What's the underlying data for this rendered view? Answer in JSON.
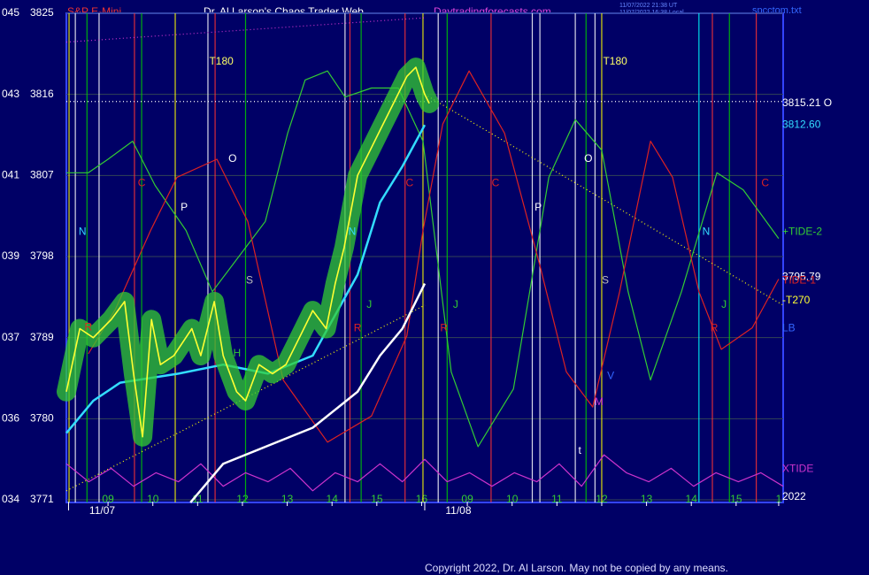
{
  "chart_data": {
    "type": "line",
    "symbol": "S&P E-Mini",
    "title": "Dr. Al Larson's Chaos Trader Web",
    "site": "Daytradingforecasts.com",
    "timestamps": [
      "11/07/2022 21:38 UT",
      "11/07/2022 16:38 Local"
    ],
    "file": "spcctom.txt",
    "copyright": "Copyright 2022, Dr. Al Larson. May not be copied by any means.",
    "background": "#000066",
    "grid": true,
    "xlim": [
      0,
      16
    ],
    "ylim": [
      3771,
      3825
    ],
    "yticks": [
      3771,
      3780,
      3789,
      3798,
      3807,
      3816,
      3825
    ],
    "ytick_prefixes": [
      "034",
      "036",
      "037",
      "039",
      "041",
      "043",
      "045"
    ],
    "xticks": [
      {
        "value": 0.93,
        "label": "09"
      },
      {
        "value": 1.93,
        "label": "10"
      },
      {
        "value": 2.93,
        "label": "11"
      },
      {
        "value": 3.93,
        "label": "12"
      },
      {
        "value": 4.93,
        "label": "13"
      },
      {
        "value": 5.93,
        "label": "14"
      },
      {
        "value": 6.93,
        "label": "15"
      },
      {
        "value": 7.93,
        "label": "16"
      },
      {
        "value": 8.95,
        "label": "09"
      },
      {
        "value": 9.95,
        "label": "10"
      },
      {
        "value": 10.95,
        "label": "11"
      },
      {
        "value": 11.95,
        "label": "12"
      },
      {
        "value": 12.95,
        "label": "13"
      },
      {
        "value": 13.95,
        "label": "14"
      },
      {
        "value": 14.95,
        "label": "15"
      },
      {
        "value": 15.9,
        "label": "1"
      }
    ],
    "dates": [
      {
        "value": 0.8,
        "label": "11/07"
      },
      {
        "value": 8.75,
        "label": "11/08"
      }
    ],
    "vlines": [
      {
        "x": 0.06,
        "color": "#ffff00"
      },
      {
        "x": 0.2,
        "color": "#ffffff"
      },
      {
        "x": 0.46,
        "color": "#00cc00"
      },
      {
        "x": 0.73,
        "color": "#ffffff"
      },
      {
        "x": 1.52,
        "color": "#ff3333"
      },
      {
        "x": 1.68,
        "color": "#00cc00"
      },
      {
        "x": 2.43,
        "color": "#ffff00"
      },
      {
        "x": 3.16,
        "color": "#ffffff"
      },
      {
        "x": 3.32,
        "color": "#ff3333"
      },
      {
        "x": 4.0,
        "color": "#00cc00"
      },
      {
        "x": 6.22,
        "color": "#ffffff"
      },
      {
        "x": 6.33,
        "color": "#ff3333"
      },
      {
        "x": 6.58,
        "color": "#00cc00"
      },
      {
        "x": 7.56,
        "color": "#ff3333"
      },
      {
        "x": 7.96,
        "color": "#ffff00"
      },
      {
        "x": 8.3,
        "color": "#ffffff"
      },
      {
        "x": 8.5,
        "color": "#00cc00"
      },
      {
        "x": 9.48,
        "color": "#ff3333"
      },
      {
        "x": 10.4,
        "color": "#ffffff"
      },
      {
        "x": 10.57,
        "color": "#ffffff"
      },
      {
        "x": 11.36,
        "color": "#ffffff"
      },
      {
        "x": 11.6,
        "color": "#00cc00"
      },
      {
        "x": 11.8,
        "color": "#ffffff"
      },
      {
        "x": 11.95,
        "color": "#ffff00"
      },
      {
        "x": 14.12,
        "color": "#00ffff"
      },
      {
        "x": 14.42,
        "color": "#ff3333"
      },
      {
        "x": 14.8,
        "color": "#00cc00"
      },
      {
        "x": 15.4,
        "color": "#ff3333"
      }
    ],
    "trendlines": [
      {
        "x": [
          0,
          16
        ],
        "values": [
          3815.21,
          3815.21
        ],
        "color": "#ffffff"
      },
      {
        "x": [
          8,
          16
        ],
        "values": [
          3816,
          3792.6
        ],
        "color": "#ffff00"
      },
      {
        "x": [
          0,
          8
        ],
        "values": [
          3772,
          3792.6
        ],
        "color": "#ffff00"
      },
      {
        "x": [
          0,
          8
        ],
        "values": [
          3821.8,
          3824.5
        ],
        "color": "#cc33cc"
      }
    ],
    "series": [
      {
        "color": "#33cc33",
        "width": 1.2,
        "x": [
          0,
          0.49,
          0.93,
          1.48,
          1.98,
          2.67,
          3.26,
          3.85,
          4.44,
          4.94,
          5.33,
          5.83,
          6.22,
          6.81,
          7.41,
          7.96,
          8.59,
          9.19,
          9.98,
          10.77,
          11.36,
          11.95,
          12.54,
          13.04,
          13.73,
          14.52,
          15.11,
          15.9
        ],
        "values": [
          3807.3,
          3807.3,
          3808.8,
          3810.8,
          3805.9,
          3800.9,
          3794.1,
          3798.0,
          3801.9,
          3811.7,
          3817.6,
          3818.6,
          3815.7,
          3816.7,
          3816.7,
          3810.8,
          3785.2,
          3776.9,
          3783.3,
          3806.8,
          3813.2,
          3809.8,
          3794.1,
          3784.3,
          3794.1,
          3807.3,
          3805.4,
          3800.0
        ]
      },
      {
        "color": "#dd2222",
        "width": 1.2,
        "x": [
          0.49,
          1.09,
          1.88,
          2.47,
          3.36,
          4.05,
          4.84,
          5.83,
          6.81,
          7.6,
          7.96,
          8.4,
          8.99,
          9.78,
          10.57,
          11.16,
          11.75,
          12.35,
          13.04,
          13.53,
          14.12,
          14.62,
          15.31,
          15.9
        ],
        "values": [
          3787.2,
          3792.1,
          3800.9,
          3806.8,
          3808.8,
          3801.9,
          3784.3,
          3777.4,
          3780.3,
          3789.2,
          3800.9,
          3812.7,
          3818.6,
          3811.7,
          3797.0,
          3785.2,
          3781.3,
          3794.1,
          3810.8,
          3806.8,
          3794.1,
          3787.7,
          3790.1,
          3795.5
        ]
      },
      {
        "color": "#cc33cc",
        "width": 1.2,
        "x": [
          0,
          0.5,
          1,
          1.5,
          2,
          2.5,
          3,
          3.5,
          4,
          4.5,
          5,
          5.5,
          6,
          6.5,
          7,
          7.5,
          8,
          8.5,
          9,
          9.5,
          10,
          10.5,
          11,
          11.5,
          12,
          12.5,
          13,
          13.5,
          14,
          14.5,
          15,
          15.5,
          16
        ],
        "values": [
          3775,
          3773,
          3774.5,
          3772.5,
          3774,
          3773,
          3775,
          3772.5,
          3774,
          3773,
          3774.5,
          3772,
          3774,
          3773,
          3775,
          3773,
          3775.5,
          3773,
          3774,
          3772.5,
          3774,
          3773,
          3775,
          3772.5,
          3776,
          3774,
          3773,
          3774.5,
          3772.5,
          3774,
          3773,
          3774,
          3772.5
        ]
      },
      {
        "color": "#ffffff",
        "width": 2.5,
        "x": [
          2.77,
          3.5,
          4.5,
          5.5,
          6.5,
          7.0,
          7.5,
          8.0
        ],
        "values": [
          3770.7,
          3775,
          3777,
          3779,
          3783,
          3787,
          3790,
          3795
        ]
      },
      {
        "color": "#33ddff",
        "width": 2.5,
        "x": [
          0,
          0.6,
          1.2,
          2.5,
          3.5,
          4.5,
          5.5,
          6.5,
          7.0,
          7.5,
          8.0
        ],
        "values": [
          3778.4,
          3782,
          3784,
          3785,
          3786,
          3785,
          3787,
          3796,
          3804,
          3808,
          3812.6
        ]
      },
      {
        "color": "#ffff33",
        "width": 1.6,
        "glow": "#33cc33",
        "x": [
          0,
          0.3,
          0.6,
          1.0,
          1.3,
          1.5,
          1.7,
          1.9,
          2.1,
          2.4,
          2.8,
          3.0,
          3.3,
          3.5,
          3.8,
          4.0,
          4.3,
          4.6,
          4.9,
          5.2,
          5.5,
          5.8,
          6.0,
          6.2,
          6.5,
          6.8,
          7.0,
          7.3,
          7.6,
          7.8,
          8.0,
          8.1
        ],
        "values": [
          3783,
          3790,
          3789,
          3791,
          3793,
          3785,
          3778,
          3791,
          3786,
          3787,
          3790,
          3787,
          3793,
          3787,
          3783,
          3782,
          3786,
          3785,
          3786,
          3789,
          3792,
          3790,
          3795,
          3799,
          3807,
          3810,
          3812,
          3815,
          3818,
          3819,
          3816,
          3815
        ]
      }
    ],
    "annotations": [
      {
        "text": "T180",
        "x": 3.46,
        "y": 3819.6,
        "color": "#ffff66"
      },
      {
        "text": "T180",
        "x": 12.25,
        "y": 3819.6,
        "color": "#ffff66"
      },
      {
        "text": "O",
        "x": 3.71,
        "y": 3808.8,
        "color": "#ffffff"
      },
      {
        "text": "O",
        "x": 11.65,
        "y": 3808.8,
        "color": "#ffffff"
      },
      {
        "text": "P",
        "x": 2.63,
        "y": 3803.4,
        "color": "#ffffff"
      },
      {
        "text": "P",
        "x": 10.53,
        "y": 3803.4,
        "color": "#ffffff"
      },
      {
        "text": "C",
        "x": 1.68,
        "y": 3806.1,
        "color": "#dd2222"
      },
      {
        "text": "C",
        "x": 7.66,
        "y": 3806.1,
        "color": "#dd2222"
      },
      {
        "text": "C",
        "x": 9.58,
        "y": 3806.1,
        "color": "#dd2222"
      },
      {
        "text": "C",
        "x": 15.6,
        "y": 3806.1,
        "color": "#dd2222"
      },
      {
        "text": "N",
        "x": 0.36,
        "y": 3800.7,
        "color": "#33ddff"
      },
      {
        "text": "N",
        "x": 6.38,
        "y": 3800.7,
        "color": "#33ddff"
      },
      {
        "text": "N",
        "x": 14.28,
        "y": 3800.7,
        "color": "#33ddff"
      },
      {
        "text": "S",
        "x": 4.09,
        "y": 3795.3,
        "color": "#bbbbbb"
      },
      {
        "text": "S",
        "x": 12.03,
        "y": 3795.3,
        "color": "#bbbbbb"
      },
      {
        "text": "R",
        "x": 0.49,
        "y": 3790.1,
        "color": "#dd2222"
      },
      {
        "text": "R",
        "x": 6.5,
        "y": 3790.0,
        "color": "#dd2222"
      },
      {
        "text": "R",
        "x": 8.43,
        "y": 3790.0,
        "color": "#dd2222"
      },
      {
        "text": "R",
        "x": 14.46,
        "y": 3790.0,
        "color": "#dd2222"
      },
      {
        "text": "J",
        "x": 6.76,
        "y": 3792.6,
        "color": "#33cc33"
      },
      {
        "text": "J",
        "x": 8.69,
        "y": 3792.6,
        "color": "#33cc33"
      },
      {
        "text": "J",
        "x": 14.68,
        "y": 3792.6,
        "color": "#33cc33"
      },
      {
        "text": "H",
        "x": 3.81,
        "y": 3787.2,
        "color": "#33cc33"
      },
      {
        "text": "M",
        "x": 11.89,
        "y": 3781.8,
        "color": "#cc33cc"
      },
      {
        "text": "V",
        "x": 12.15,
        "y": 3784.7,
        "color": "#3366ff"
      },
      {
        "text": "t",
        "x": 11.46,
        "y": 3776.4,
        "color": "#ffffff"
      }
    ],
    "right_labels": [
      {
        "text": "3815.21 O",
        "y": 3815.0,
        "color": "#ffffff"
      },
      {
        "text": "3812.60",
        "y": 3812.6,
        "color": "#33ddff"
      },
      {
        "text": "+TIDE-2",
        "y": 3800.7,
        "color": "#33cc33"
      },
      {
        "text": "3795.79",
        "y": 3795.7,
        "color": "#ffffff"
      },
      {
        "text": "TIDE-1",
        "y": 3795.3,
        "color": "#dd2222"
      },
      {
        "text": "-T270",
        "y": 3793.1,
        "color": "#ffff33"
      },
      {
        "text": "LB",
        "y": 3790.0,
        "color": "#3366ff"
      },
      {
        "text": "XTIDE",
        "y": 3774.4,
        "color": "#cc33cc"
      },
      {
        "text": "2022",
        "y": 3771.3,
        "color": "#ffffff"
      }
    ]
  }
}
